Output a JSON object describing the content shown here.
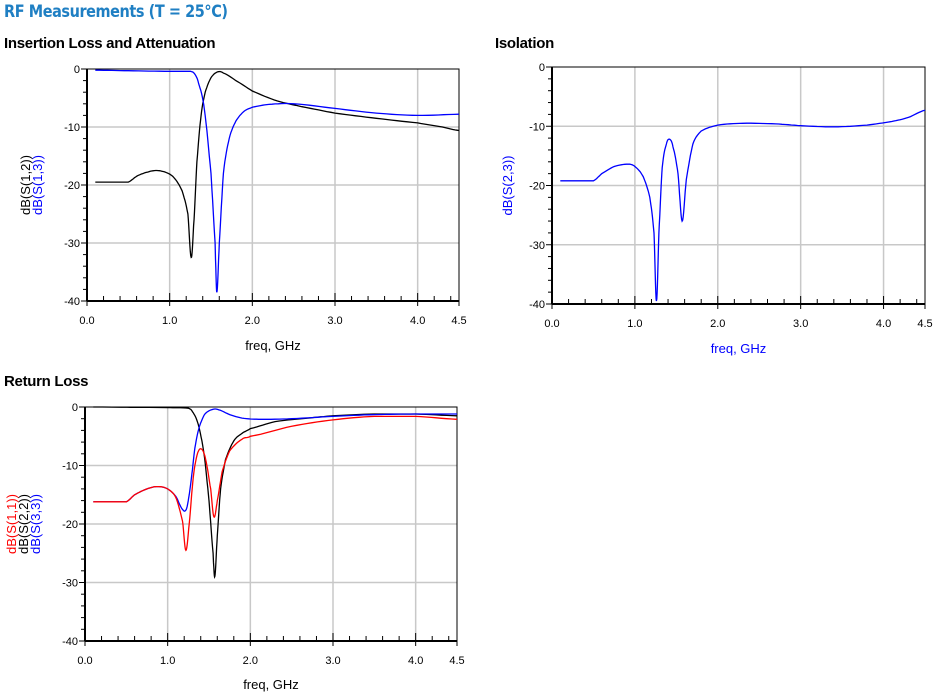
{
  "page_title": "RF Measurements (T = 25°C)",
  "chart_data": [
    {
      "type": "line",
      "title": "Insertion Loss and Attenuation",
      "xlabel": "freq, GHz",
      "xlabel_color": "#000000",
      "ylabels": [
        {
          "text": "dB(S(1,2))",
          "color": "#000000"
        },
        {
          "text": "dB(S(1,3))",
          "color": "#0000ff"
        }
      ],
      "xlim": [
        0,
        4.5
      ],
      "ylim": [
        -40,
        0
      ],
      "xticks": [
        "0.0",
        "1.0",
        "2.0",
        "3.0",
        "4.0",
        "4.5"
      ],
      "yticks": [
        "0",
        "-10",
        "-20",
        "-30",
        "-40"
      ],
      "grid": true,
      "series": [
        {
          "name": "dB(S(1,2))",
          "color": "#000000",
          "x": [
            0.1,
            0.5,
            0.6,
            0.7,
            0.83,
            0.95,
            1.05,
            1.15,
            1.22,
            1.26,
            1.29,
            1.33,
            1.38,
            1.43,
            1.5,
            1.58,
            1.65,
            1.8,
            2.0,
            2.3,
            2.6,
            3.0,
            3.5,
            4.0,
            4.3,
            4.5
          ],
          "y": [
            -19.5,
            -19.5,
            -18.5,
            -17.9,
            -17.5,
            -17.8,
            -18.7,
            -21,
            -25,
            -32.5,
            -27,
            -16,
            -8,
            -4,
            -1.5,
            -0.5,
            -0.7,
            -2,
            -3.8,
            -5.5,
            -6.5,
            -7.6,
            -8.5,
            -9.3,
            -10,
            -10.6
          ]
        },
        {
          "name": "dB(S(1,3))",
          "color": "#0000ff",
          "x": [
            0.1,
            0.5,
            1.0,
            1.25,
            1.3,
            1.35,
            1.42,
            1.5,
            1.55,
            1.57,
            1.6,
            1.65,
            1.72,
            1.8,
            1.9,
            2.0,
            2.2,
            2.5,
            3.0,
            3.5,
            4.0,
            4.5
          ],
          "y": [
            -0.2,
            -0.3,
            -0.4,
            -0.4,
            -0.8,
            -2.5,
            -7,
            -18,
            -30,
            -38.5,
            -30,
            -18,
            -12,
            -9,
            -7.3,
            -6.6,
            -6.1,
            -6.0,
            -6.8,
            -7.6,
            -8.0,
            -7.8
          ]
        }
      ]
    },
    {
      "type": "line",
      "title": "Isolation",
      "xlabel": "freq, GHz",
      "xlabel_color": "#0000ff",
      "ylabels": [
        {
          "text": "dB(S(2,3))",
          "color": "#0000ff"
        }
      ],
      "xlim": [
        0,
        4.5
      ],
      "ylim": [
        -40,
        0
      ],
      "xticks": [
        "0.0",
        "1.0",
        "2.0",
        "3.0",
        "4.0",
        "4.5"
      ],
      "yticks": [
        "0",
        "-10",
        "-20",
        "-30",
        "-40"
      ],
      "grid": true,
      "series": [
        {
          "name": "dB(S(2,3))",
          "color": "#0000ff",
          "x": [
            0.1,
            0.5,
            0.6,
            0.75,
            0.92,
            1.0,
            1.1,
            1.18,
            1.23,
            1.26,
            1.29,
            1.33,
            1.38,
            1.42,
            1.46,
            1.52,
            1.57,
            1.62,
            1.7,
            1.8,
            2.0,
            2.3,
            2.7,
            3.0,
            3.4,
            3.8,
            4.1,
            4.3,
            4.5
          ],
          "y": [
            -19.2,
            -19.2,
            -18,
            -16.8,
            -16.4,
            -16.8,
            -18.5,
            -22,
            -28,
            -39.5,
            -28,
            -17,
            -13,
            -12.2,
            -13.5,
            -18,
            -26,
            -19,
            -13,
            -10.8,
            -9.8,
            -9.5,
            -9.6,
            -9.9,
            -10.1,
            -9.8,
            -9.2,
            -8.5,
            -7.3
          ]
        }
      ]
    },
    {
      "type": "line",
      "title": "Return Loss",
      "xlabel": "freq, GHz",
      "xlabel_color": "#000000",
      "ylabels": [
        {
          "text": "dB(S(1,1))",
          "color": "#ff0000"
        },
        {
          "text": "dB(S(2,2))",
          "color": "#000000"
        },
        {
          "text": "dB(S(3,3))",
          "color": "#0000ff"
        }
      ],
      "xlim": [
        0,
        4.5
      ],
      "ylim": [
        -40,
        0
      ],
      "xticks": [
        "0.0",
        "1.0",
        "2.0",
        "3.0",
        "4.0",
        "4.5"
      ],
      "yticks": [
        "0",
        "-10",
        "-20",
        "-30",
        "-40"
      ],
      "grid": true,
      "series": [
        {
          "name": "dB(S(2,2))",
          "color": "#000000",
          "x": [
            0.1,
            1.0,
            1.25,
            1.3,
            1.37,
            1.44,
            1.5,
            1.55,
            1.57,
            1.6,
            1.64,
            1.7,
            1.8,
            1.9,
            2.0,
            2.3,
            2.7,
            3.0,
            3.5,
            4.0,
            4.5
          ],
          "y": [
            0,
            -0.1,
            -0.2,
            -0.8,
            -3,
            -8,
            -16,
            -25,
            -29,
            -22,
            -14,
            -9,
            -5.8,
            -4.5,
            -3.7,
            -2.5,
            -1.9,
            -1.5,
            -1.2,
            -1.2,
            -1.5
          ]
        },
        {
          "name": "dB(S(3,3))",
          "color": "#0000ff",
          "x": [
            0.1,
            0.5,
            0.6,
            0.75,
            0.88,
            1.0,
            1.1,
            1.18,
            1.23,
            1.28,
            1.33,
            1.38,
            1.45,
            1.55,
            1.62,
            1.75,
            1.9,
            2.1,
            2.5,
            3.0,
            3.5,
            4.0,
            4.5
          ],
          "y": [
            -16.2,
            -16.2,
            -15,
            -14,
            -13.6,
            -14,
            -15.3,
            -17.5,
            -17.3,
            -13,
            -7,
            -3.5,
            -1.2,
            -0.4,
            -0.5,
            -1.3,
            -1.9,
            -2.1,
            -2.0,
            -1.6,
            -1.3,
            -1.2,
            -1.2
          ]
        },
        {
          "name": "dB(S(1,1))",
          "color": "#ff0000",
          "x": [
            0.1,
            0.5,
            0.6,
            0.75,
            0.88,
            1.0,
            1.1,
            1.18,
            1.22,
            1.26,
            1.31,
            1.36,
            1.41,
            1.46,
            1.52,
            1.56,
            1.6,
            1.66,
            1.75,
            1.9,
            2.0,
            2.5,
            3.0,
            3.5,
            4.0,
            4.5
          ],
          "y": [
            -16.2,
            -16.2,
            -15,
            -14,
            -13.6,
            -14,
            -15.5,
            -19.5,
            -24.5,
            -20,
            -12,
            -8,
            -7.2,
            -9,
            -14,
            -18.8,
            -16,
            -11,
            -7.5,
            -5.5,
            -5,
            -3.3,
            -2.2,
            -1.6,
            -1.6,
            -2.1
          ]
        }
      ]
    }
  ]
}
